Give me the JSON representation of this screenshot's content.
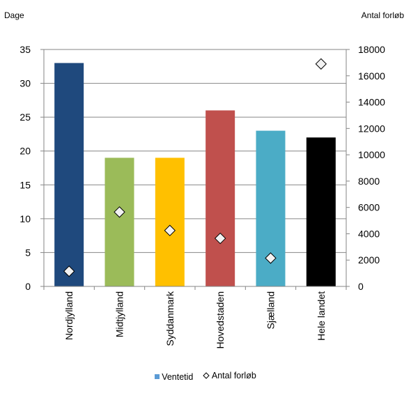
{
  "chart_data": {
    "type": "bar",
    "categories": [
      "Nordjylland",
      "Midtjylland",
      "Syddanmark",
      "Hovedstaden",
      "Sjælland",
      "Hele landet"
    ],
    "series": [
      {
        "name": "Ventetid",
        "axis": "left",
        "values": [
          33,
          19,
          19,
          26,
          23,
          22
        ],
        "colors": [
          "#1f497d",
          "#9bbb59",
          "#ffc000",
          "#c0504d",
          "#4bacc6",
          "#000000"
        ],
        "legend_color": "#5b9bd5"
      },
      {
        "name": "Antal forløb",
        "axis": "right",
        "marker": "diamond",
        "values": [
          1150,
          5650,
          4250,
          3650,
          2150,
          16900
        ]
      }
    ],
    "left_axis": {
      "label": "Dage",
      "min": 0,
      "max": 35,
      "ticks": [
        "0",
        "5",
        "10",
        "15",
        "20",
        "25",
        "30",
        "35"
      ]
    },
    "right_axis": {
      "label": "Antal forløb",
      "min": 0,
      "max": 18000,
      "ticks": [
        "0",
        "2000",
        "4000",
        "6000",
        "8000",
        "10000",
        "12000",
        "14000",
        "16000",
        "18000"
      ]
    },
    "grid": true,
    "legend_position": "bottom"
  }
}
